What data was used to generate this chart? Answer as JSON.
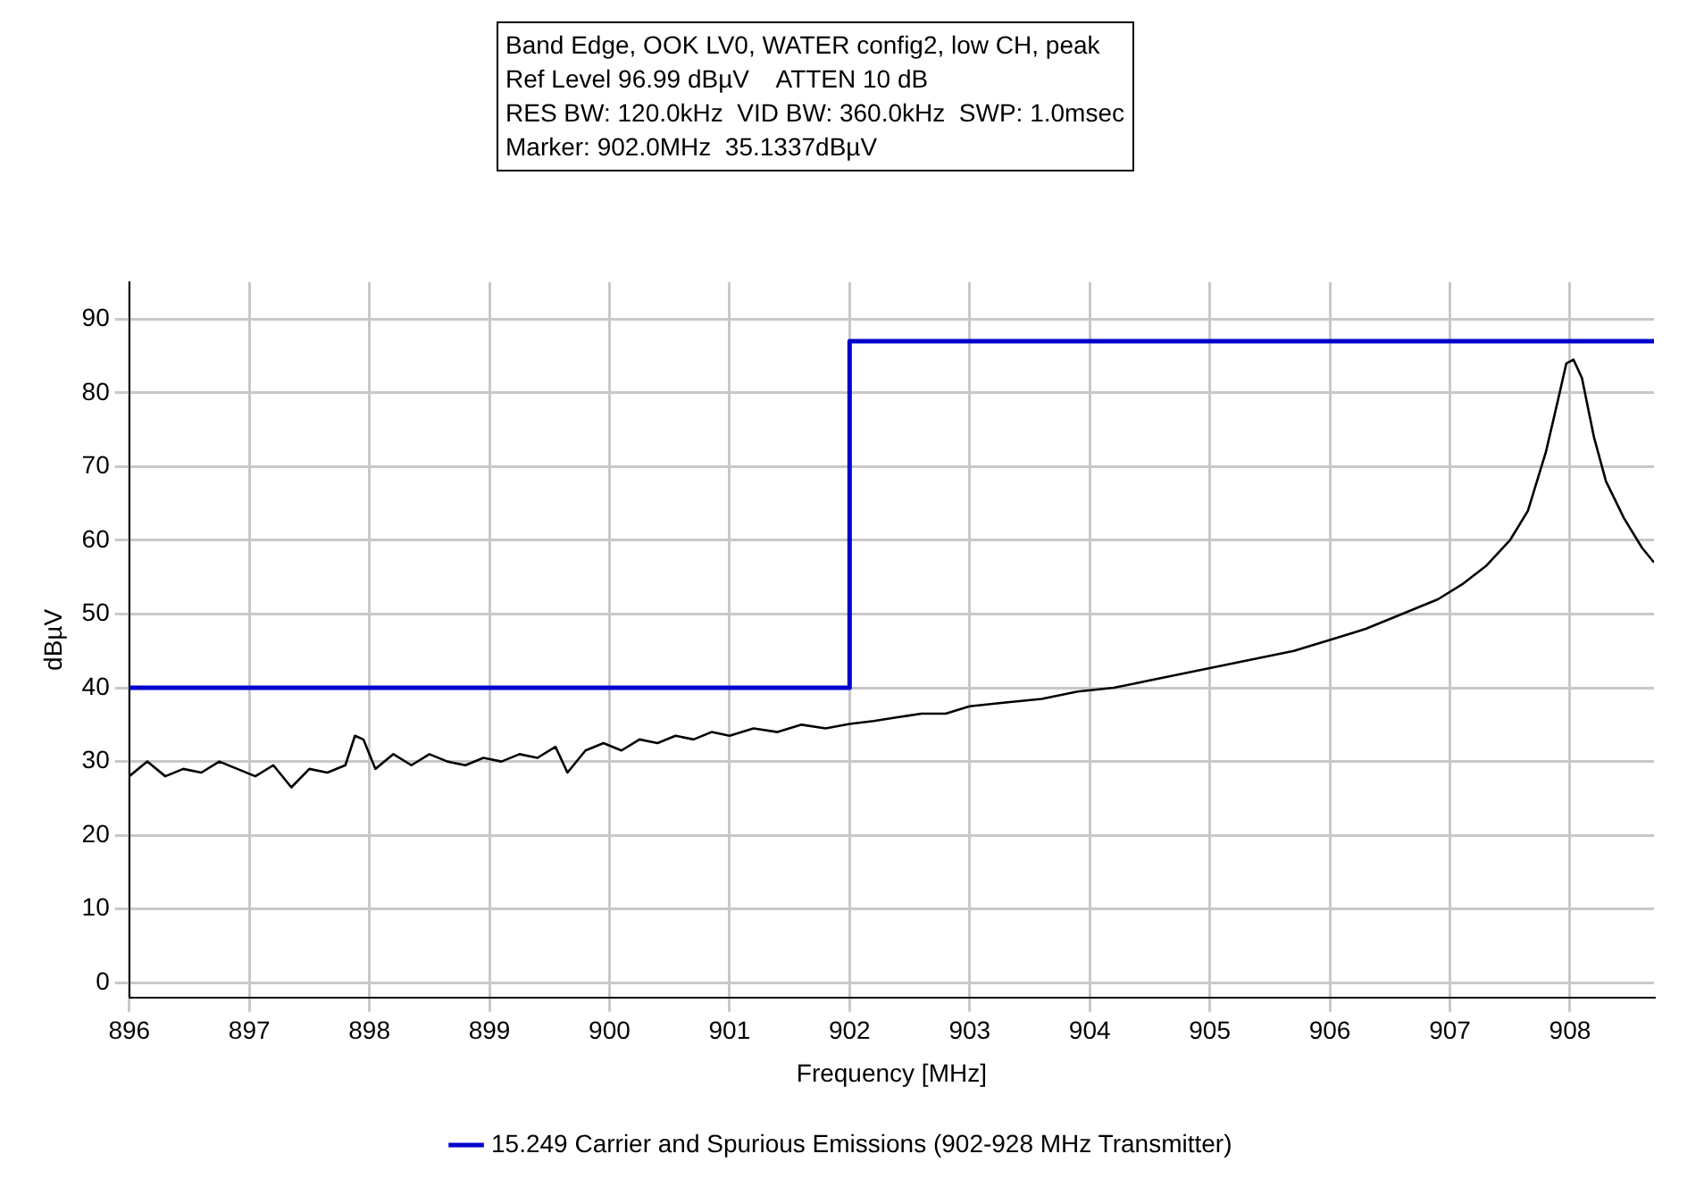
{
  "chart_data": {
    "type": "line",
    "annotations": [
      "Band Edge, OOK LV0, WATER config2, low CH, peak",
      "Ref Level 96.99 dBµV    ATTEN 10 dB",
      "RES BW: 120.0kHz  VID BW: 360.0kHz  SWP: 1.0msec",
      "Marker: 902.0MHz  35.1337dBµV"
    ],
    "xlabel": "Frequency [MHz]",
    "ylabel": "dBµV",
    "xlim": [
      896,
      908.7
    ],
    "xticks": [
      896,
      897,
      898,
      899,
      900,
      901,
      902,
      903,
      904,
      905,
      906,
      907,
      908
    ],
    "ylim": [
      -2,
      95
    ],
    "yticks": [
      0,
      10,
      20,
      30,
      40,
      50,
      60,
      70,
      80,
      90
    ],
    "grid": true,
    "legend": "bottom",
    "series": [
      {
        "type": "line",
        "color": "#000000",
        "x": [
          896,
          896.15,
          896.3,
          896.45,
          896.6,
          896.75,
          896.9,
          897.05,
          897.2,
          897.35,
          897.5,
          897.65,
          897.8,
          897.88,
          897.95,
          898.05,
          898.2,
          898.35,
          898.5,
          898.65,
          898.8,
          898.95,
          899.1,
          899.25,
          899.4,
          899.55,
          899.65,
          899.8,
          899.95,
          900.1,
          900.25,
          900.4,
          900.55,
          900.7,
          900.85,
          901,
          901.2,
          901.4,
          901.6,
          901.8,
          902,
          902.2,
          902.4,
          902.6,
          902.8,
          903,
          903.3,
          903.6,
          903.9,
          904.2,
          904.5,
          904.8,
          905.1,
          905.4,
          905.7,
          906,
          906.3,
          906.6,
          906.9,
          907.1,
          907.3,
          907.5,
          907.65,
          907.8,
          907.9,
          907.97,
          908.03,
          908.1,
          908.2,
          908.3,
          908.45,
          908.6,
          908.7
        ],
        "values": [
          28,
          30,
          28,
          29,
          28.5,
          30,
          29,
          28,
          29.5,
          26.5,
          29,
          28.5,
          29.5,
          33.5,
          33,
          29,
          31,
          29.5,
          31,
          30,
          29.5,
          30.5,
          30,
          31,
          30.5,
          32,
          28.5,
          31.5,
          32.5,
          31.5,
          33,
          32.5,
          33.5,
          33,
          34,
          33.5,
          34.5,
          34,
          35,
          34.5,
          35.1,
          35.5,
          36,
          36.5,
          36.5,
          37.5,
          38,
          38.5,
          39.5,
          40,
          41,
          42,
          43,
          44,
          45,
          46.5,
          48,
          50,
          52,
          54,
          56.5,
          60,
          64,
          72,
          79,
          84,
          84.5,
          82,
          74,
          68,
          63,
          59,
          57
        ]
      },
      {
        "type": "step",
        "name": "15.249 Carrier and Spurious Emissions (902-928 MHz Transmitter)",
        "color": "#0000cc",
        "x": [
          896,
          902,
          908.7
        ],
        "values": [
          40,
          87,
          87
        ]
      }
    ]
  }
}
